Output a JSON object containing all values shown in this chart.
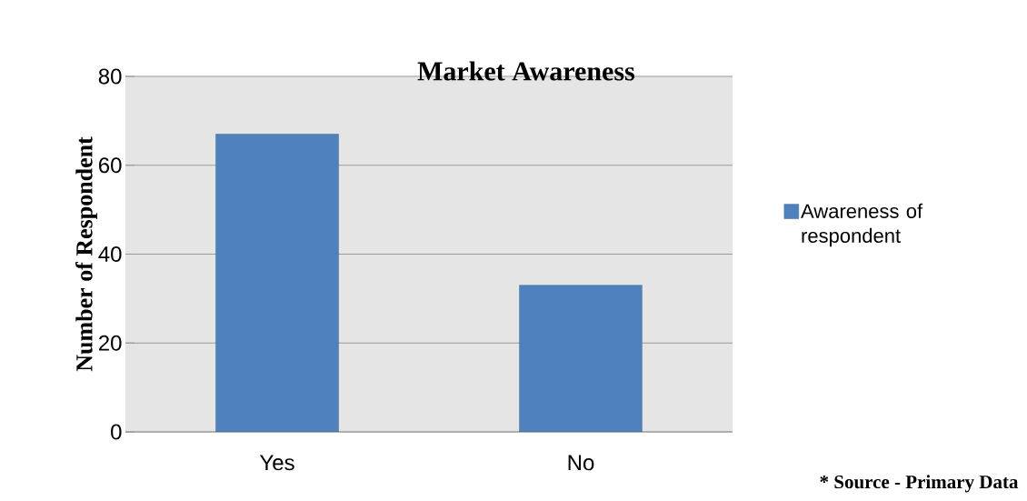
{
  "chart_data": {
    "type": "bar",
    "title": "Market Awareness",
    "ylabel": "Number of Respondent",
    "categories": [
      "Yes",
      "No"
    ],
    "series": [
      {
        "name": "Awareness of respondent",
        "color": "#4f81bd",
        "values": [
          67,
          33
        ]
      }
    ],
    "ylim": [
      0,
      80
    ],
    "yticks": [
      0,
      20,
      40,
      60,
      80
    ],
    "grid": "y",
    "legend": "right",
    "annotations": [
      "* Source - Primary Data"
    ]
  }
}
